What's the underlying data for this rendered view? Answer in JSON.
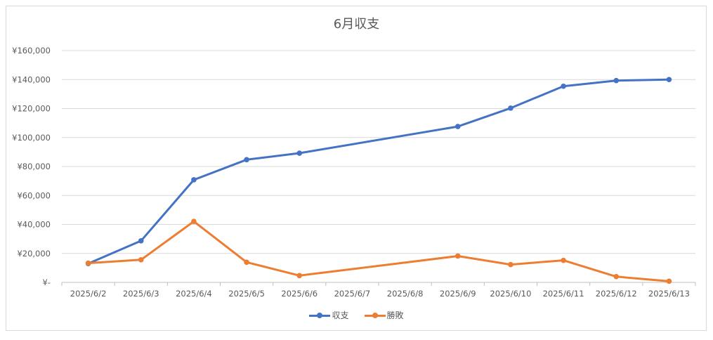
{
  "chart_data": {
    "type": "line",
    "title": "6月収支",
    "xlabel": "",
    "ylabel": "",
    "categories": [
      "2025/6/2",
      "2025/6/3",
      "2025/6/4",
      "2025/6/5",
      "2025/6/6",
      "2025/6/7",
      "2025/6/8",
      "2025/6/9",
      "2025/6/10",
      "2025/6/11",
      "2025/6/12",
      "2025/6/13"
    ],
    "y_ticks": [
      "¥-",
      "¥20,000",
      "¥40,000",
      "¥60,000",
      "¥80,000",
      "¥100,000",
      "¥120,000",
      "¥140,000",
      "¥160,000"
    ],
    "ylim": [
      0,
      160000
    ],
    "grid": true,
    "legend_position": "bottom",
    "series": [
      {
        "name": "収支",
        "color": "#4472c4",
        "values": [
          13000,
          28700,
          70800,
          84700,
          89200,
          null,
          null,
          107600,
          120300,
          135400,
          139300,
          140000
        ]
      },
      {
        "name": "勝敗",
        "color": "#ed7d31",
        "values": [
          13300,
          15600,
          42100,
          13900,
          4700,
          null,
          null,
          18200,
          12300,
          15200,
          4000,
          800
        ]
      }
    ]
  }
}
